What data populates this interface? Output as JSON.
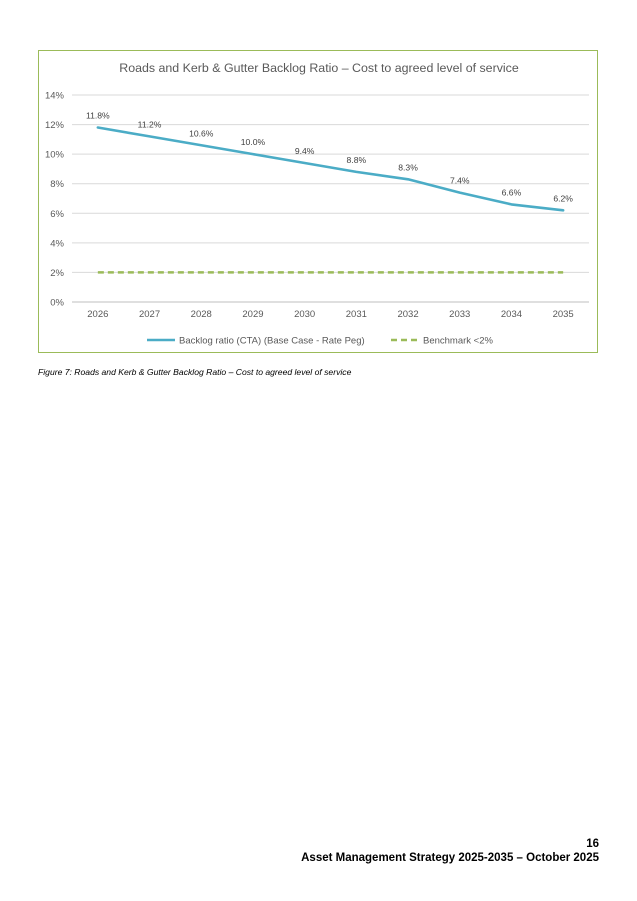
{
  "chart_data": {
    "type": "line",
    "title": "Roads and Kerb & Gutter Backlog Ratio – Cost to agreed level of service",
    "categories": [
      "2026",
      "2027",
      "2028",
      "2029",
      "2030",
      "2031",
      "2032",
      "2033",
      "2034",
      "2035"
    ],
    "series": [
      {
        "name": "Backlog ratio (CTA) (Base Case - Rate Peg)",
        "values": [
          11.8,
          11.2,
          10.6,
          10.0,
          9.4,
          8.8,
          8.3,
          7.4,
          6.6,
          6.2
        ],
        "labels": [
          "11.8%",
          "11.2%",
          "10.6%",
          "10.0%",
          "9.4%",
          "8.8%",
          "8.3%",
          "7.4%",
          "6.6%",
          "6.2%"
        ],
        "color": "#4bacc6",
        "style": "solid"
      },
      {
        "name": "Benchmark <2%",
        "values": [
          2,
          2,
          2,
          2,
          2,
          2,
          2,
          2,
          2,
          2
        ],
        "color": "#9bbb59",
        "style": "dashed"
      }
    ],
    "yticks": [
      "0%",
      "2%",
      "4%",
      "6%",
      "8%",
      "10%",
      "12%",
      "14%"
    ],
    "ylim": [
      0,
      14
    ],
    "xlabel": "",
    "ylabel": "",
    "grid": true,
    "legend": "bottom"
  },
  "caption": "Figure 7: Roads and Kerb & Gutter Backlog Ratio – Cost to agreed level of service",
  "footer": {
    "page_number": "16",
    "document_title": "Asset Management Strategy 2025-2035 – October 2025"
  }
}
